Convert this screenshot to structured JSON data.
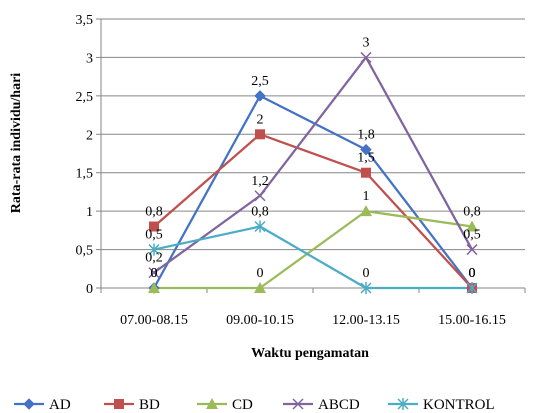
{
  "chart_data": {
    "type": "line",
    "xlabel": "Waktu pengamatan",
    "ylabel": "Rata-rata individu/hari",
    "categories": [
      "07.00-08.15",
      "09.00-10.15",
      "12.00-13.15",
      "15.00-16.15"
    ],
    "ylim": [
      0,
      3.5
    ],
    "yticks": [
      0,
      0.5,
      1,
      1.5,
      2,
      2.5,
      3,
      3.5
    ],
    "ytick_labels": [
      "0",
      "0,5",
      "1",
      "1,5",
      "2",
      "2,5",
      "3",
      "3,5"
    ],
    "grid": true,
    "legend_position": "bottom",
    "series": [
      {
        "name": "AD",
        "values": [
          0,
          2.5,
          1.8,
          0
        ],
        "color": "#4472C4",
        "marker": "diamond",
        "value_labels": [
          "0",
          "2,5",
          "1,8",
          "0"
        ]
      },
      {
        "name": "BD",
        "values": [
          0.8,
          2,
          1.5,
          0
        ],
        "color": "#C0504D",
        "marker": "square",
        "value_labels": [
          "0,8",
          "2",
          "1,5",
          "0"
        ]
      },
      {
        "name": "CD",
        "values": [
          0,
          0,
          1,
          0.8
        ],
        "color": "#9BBB59",
        "marker": "triangle",
        "value_labels": [
          "0",
          "0",
          "1",
          "0,8"
        ]
      },
      {
        "name": "ABCD",
        "values": [
          0.2,
          1.2,
          3,
          0.5
        ],
        "color": "#8064A2",
        "marker": "x",
        "value_labels": [
          "0,2",
          "1,2",
          "3",
          "0,5"
        ]
      },
      {
        "name": "KONTROL",
        "values": [
          0.5,
          0.8,
          0,
          0
        ],
        "color": "#4BACC6",
        "marker": "star",
        "value_labels": [
          "0,5",
          "0,8",
          "0",
          "0"
        ]
      }
    ]
  }
}
